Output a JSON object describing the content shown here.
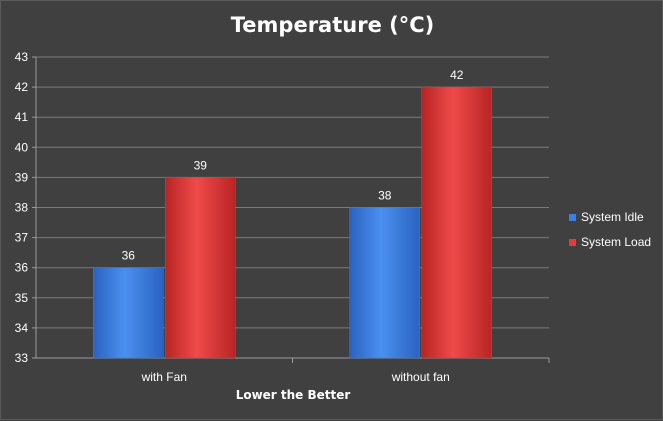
{
  "chart_data": {
    "type": "bar",
    "title": "Temperature (°C)",
    "xlabel": "Lower the Better",
    "ylabel": "",
    "categories": [
      "with Fan",
      "without fan"
    ],
    "series": [
      {
        "name": "System Idle",
        "values": [
          36,
          38
        ],
        "color": "#3a7fe6"
      },
      {
        "name": "System Load",
        "values": [
          39,
          42
        ],
        "color": "#e63a3a"
      }
    ],
    "ylim": [
      33,
      43
    ],
    "yticks": [
      33,
      34,
      35,
      36,
      37,
      38,
      39,
      40,
      41,
      42,
      43
    ],
    "grid": true,
    "legend_position": "right"
  }
}
